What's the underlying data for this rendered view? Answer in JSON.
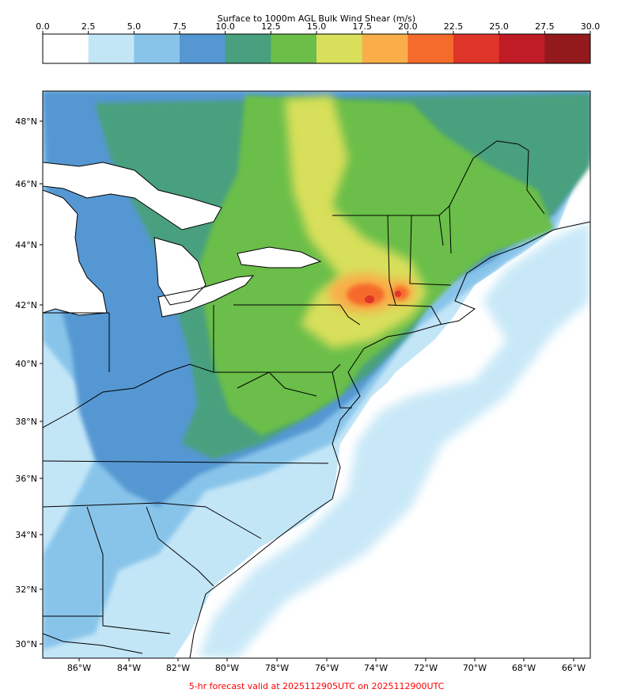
{
  "colorbar": {
    "title": "Surface to 1000m AGL Bulk Wind Shear (m/s)",
    "ticks": [
      "0.0",
      "2.5",
      "5.0",
      "7.5",
      "10.0",
      "12.5",
      "15.0",
      "17.5",
      "20.0",
      "22.5",
      "25.0",
      "27.5",
      "30.0"
    ],
    "colors": [
      "#ffffff",
      "#c3e6f7",
      "#88c4ea",
      "#5497d2",
      "#49a07e",
      "#6bbe48",
      "#d8df5a",
      "#f9ae4a",
      "#f56b2c",
      "#df3428",
      "#bf1c25",
      "#931a1c"
    ]
  },
  "map": {
    "lat_labels": [
      "48°N",
      "46°N",
      "44°N",
      "42°N",
      "40°N",
      "38°N",
      "36°N",
      "34°N",
      "32°N",
      "30°N"
    ],
    "lon_labels": [
      "86°W",
      "84°W",
      "82°W",
      "80°W",
      "78°W",
      "76°W",
      "74°W",
      "72°W",
      "70°W",
      "68°W",
      "66°W"
    ],
    "water_color": "#ffffff",
    "border_color": "#000000"
  },
  "footer": "5-hr forecast valid at 2025112905UTC on 2025112900UTC"
}
